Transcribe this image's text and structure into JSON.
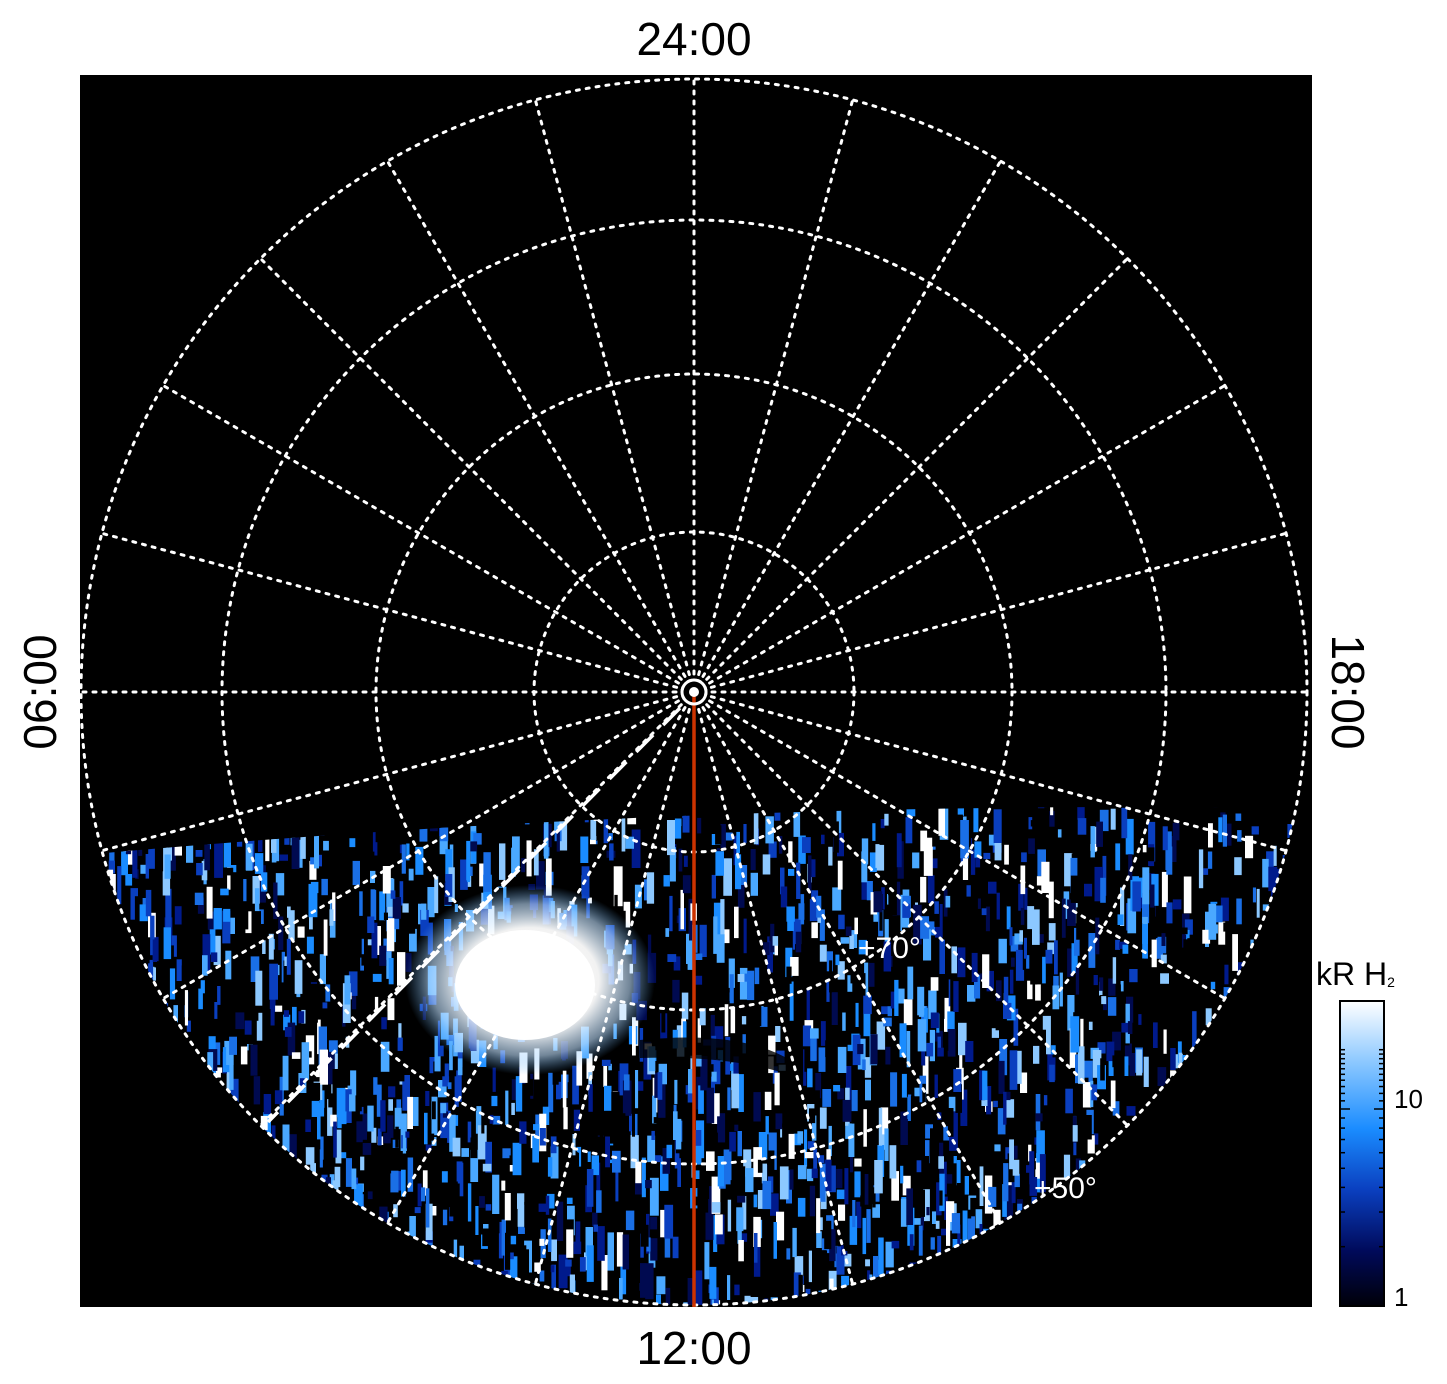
{
  "figure": {
    "local_time_labels": {
      "top": "24:00",
      "bottom": "12:00",
      "left": "06:00",
      "right": "18:00"
    },
    "latitude_labels": [
      "+70°",
      "+50°"
    ],
    "background_color": "#000000",
    "grid_color": "#ffffff",
    "meridian_line_color": "#cc3300"
  },
  "colorbar": {
    "title": "kR H",
    "title_subscript": "2",
    "tick_labels": [
      "10",
      "1"
    ],
    "scale": "log",
    "colors": [
      "#000010",
      "#000a60",
      "#0a3fbf",
      "#1a8cff",
      "#8cc8ff",
      "#ffffff"
    ]
  }
}
